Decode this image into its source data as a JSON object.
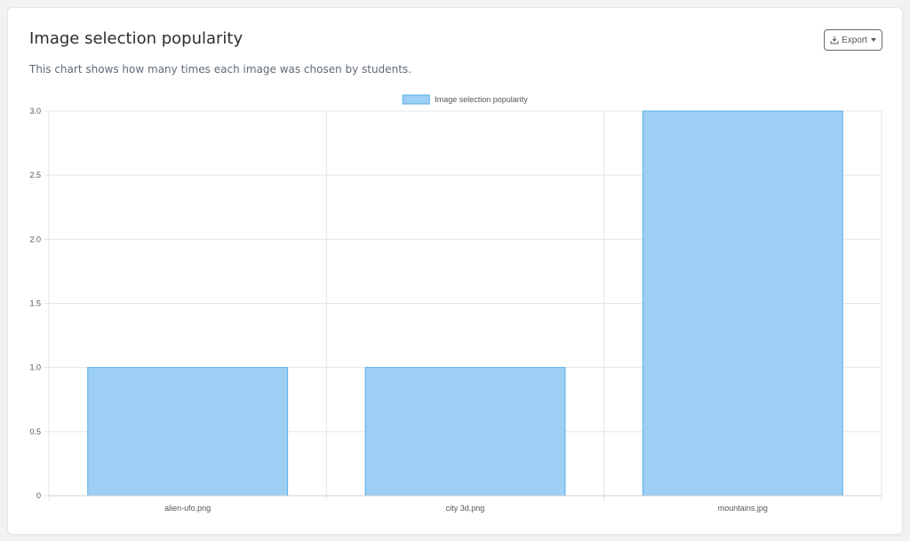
{
  "card": {
    "title": "Image selection popularity",
    "subtitle": "This chart shows how many times each image was chosen by students."
  },
  "toolbar": {
    "export_label": "Export",
    "export_icon": "download-icon"
  },
  "colors": {
    "bar_fill": "#9dcff5",
    "bar_stroke": "#5aaee8",
    "grid": "#e5e5e5"
  },
  "chart_data": {
    "type": "bar",
    "categories": [
      "alien-ufo.png",
      "city 3d.png",
      "mountains.jpg"
    ],
    "series": [
      {
        "name": "Image selection popularity",
        "values": [
          1,
          1,
          3
        ]
      }
    ],
    "ylim": [
      0,
      3
    ],
    "yticks": [
      "0",
      "0.5",
      "1.0",
      "1.5",
      "2.0",
      "2.5",
      "3.0"
    ],
    "ytick_values": [
      0,
      0.5,
      1,
      1.5,
      2,
      2.5,
      3
    ],
    "grid": true,
    "legend": "top-center"
  }
}
